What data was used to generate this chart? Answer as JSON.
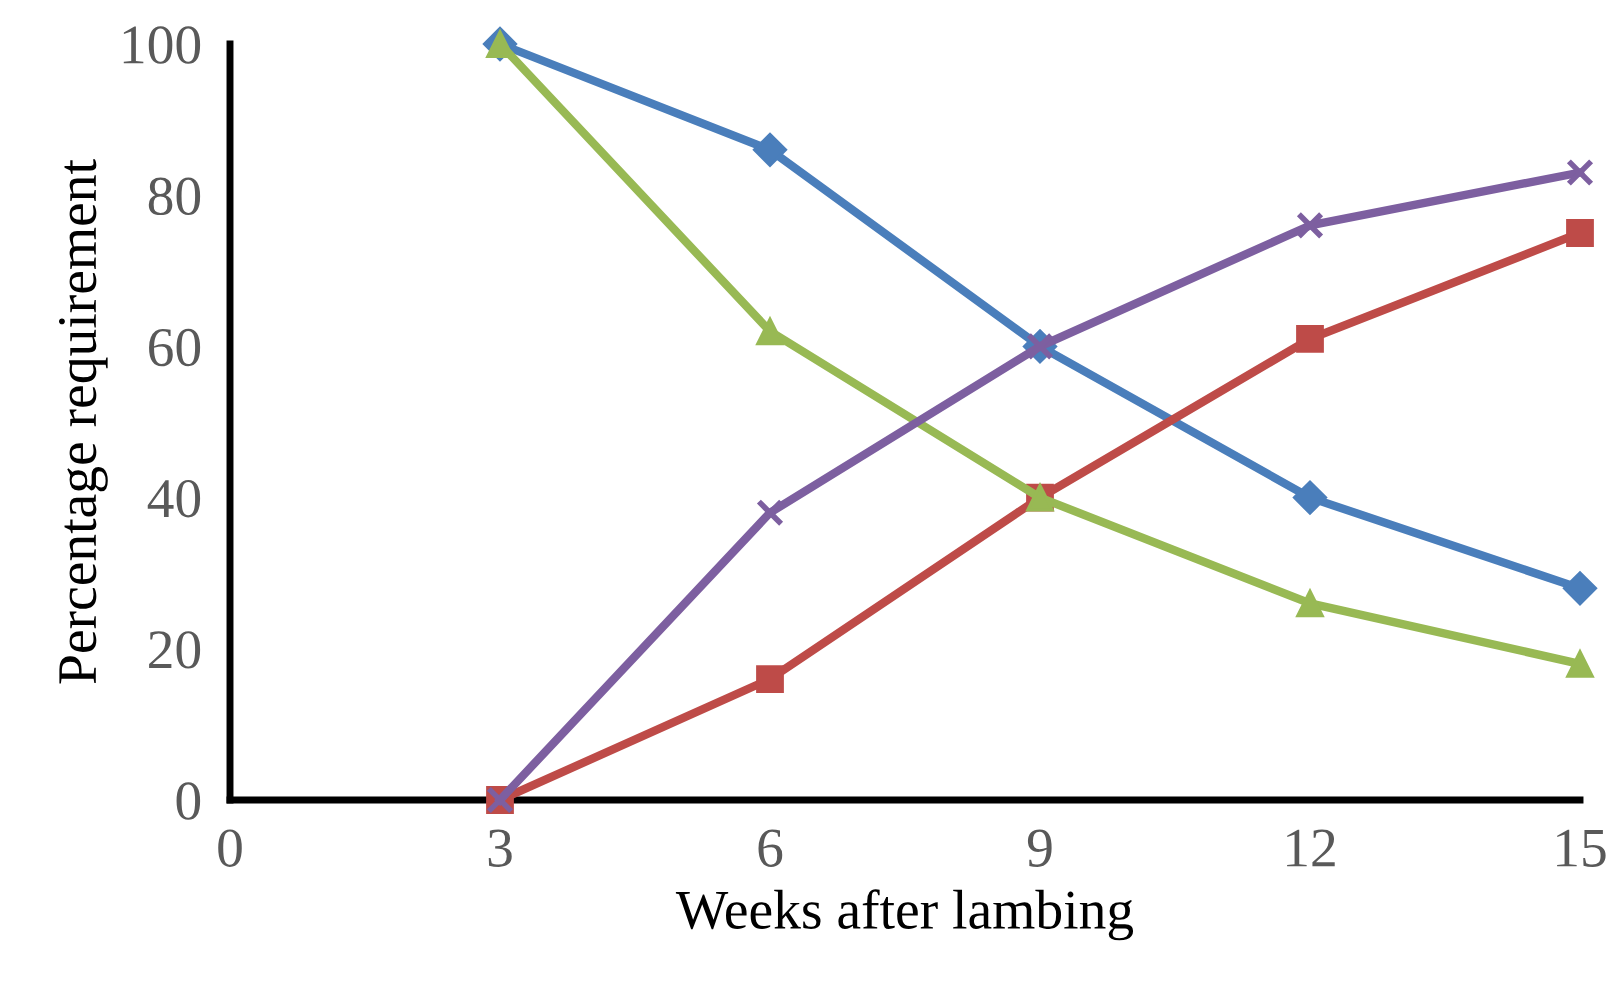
{
  "chart_data": {
    "type": "line",
    "xlabel": "Weeks after lambing",
    "ylabel": "Percentage requirement",
    "x": [
      3,
      6,
      9,
      12,
      15
    ],
    "series": [
      {
        "color": "#4a7ebb",
        "marker": "diamond",
        "values": [
          100,
          86,
          60,
          40,
          28
        ]
      },
      {
        "color": "#be4b48",
        "marker": "square",
        "values": [
          0,
          16,
          40,
          61,
          75
        ]
      },
      {
        "color": "#98b954",
        "marker": "triangle",
        "values": [
          100,
          62,
          40,
          26,
          18
        ]
      },
      {
        "color": "#7d5fa0",
        "marker": "cross",
        "values": [
          0,
          38,
          60,
          76,
          83
        ]
      }
    ],
    "xlim": [
      0,
      15
    ],
    "ylim": [
      0,
      100
    ],
    "xticks": [
      0,
      3,
      6,
      9,
      12,
      15
    ],
    "yticks": [
      0,
      20,
      40,
      60,
      80,
      100
    ],
    "grid": false
  }
}
